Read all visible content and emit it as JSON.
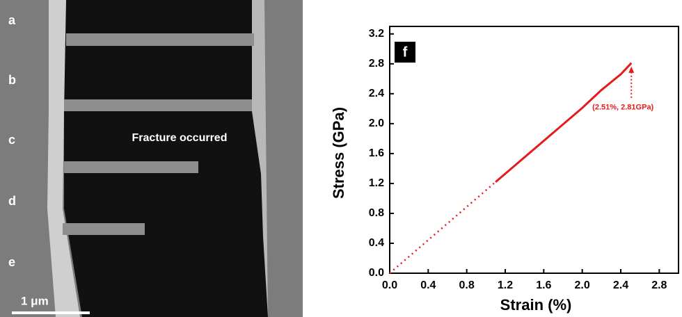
{
  "image_panel": {
    "labels": [
      "a",
      "b",
      "c",
      "d",
      "e"
    ],
    "annotation": "Fracture occurred",
    "scale_bar": "1 μm"
  },
  "chart_data": {
    "type": "line",
    "panel_label": "f",
    "xlabel": "Strain (%)",
    "ylabel": "Stress (GPa)",
    "annotation": "(2.51%, 2.81GPa)",
    "series": [
      {
        "color": "#e41a1c",
        "style": "solid",
        "x": [
          1.1,
          1.4,
          1.7,
          2.0,
          2.2,
          2.4,
          2.51
        ],
        "values": [
          1.22,
          1.55,
          1.88,
          2.21,
          2.45,
          2.66,
          2.81
        ]
      },
      {
        "color": "#e41a1c",
        "style": "dotted",
        "x": [
          0,
          1.1
        ],
        "values": [
          0,
          1.22
        ]
      }
    ],
    "xlim": [
      0,
      3.0
    ],
    "ylim": [
      0,
      3.3
    ],
    "xticks": [
      {
        "value": 0,
        "label": "0.0"
      },
      0.4,
      0.8,
      1.2,
      1.6,
      {
        "value": 2,
        "label": "2.0"
      },
      2.4,
      2.8
    ],
    "yticks": [
      {
        "value": 0,
        "label": "0.0"
      },
      0.4,
      0.8,
      1.2,
      1.6,
      {
        "value": 2,
        "label": "2.0"
      },
      2.4,
      2.8,
      3.2
    ]
  }
}
